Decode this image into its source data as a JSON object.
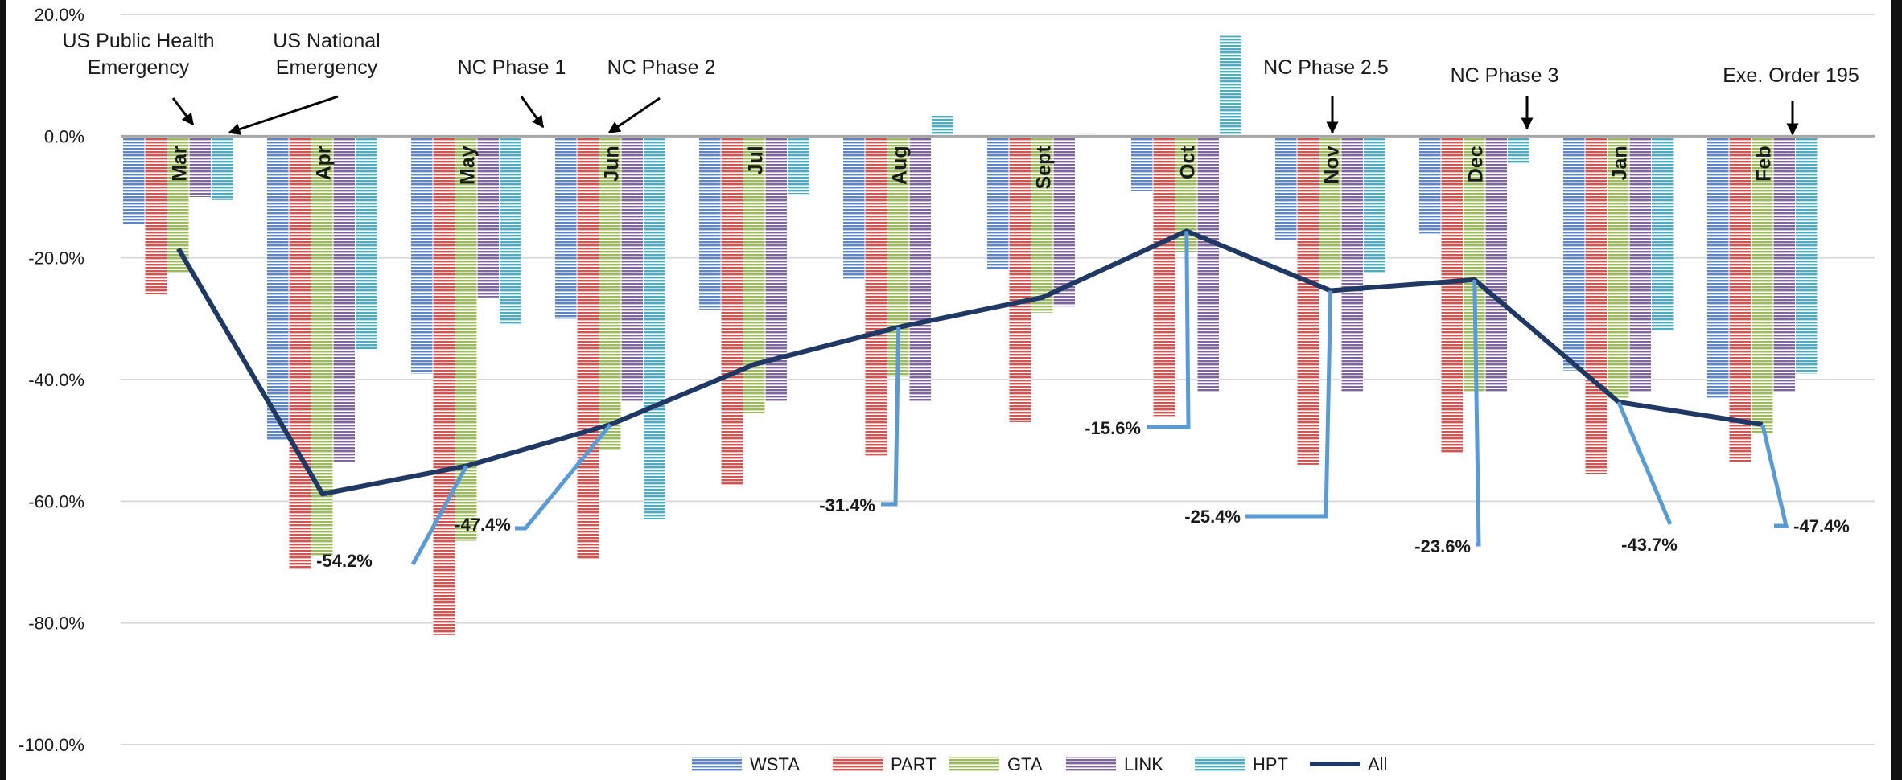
{
  "chart_data": {
    "type": "bar",
    "categories": [
      "Mar",
      "Apr",
      "May",
      "Jun",
      "Jul",
      "Aug",
      "Sept",
      "Oct",
      "Nov",
      "Dec",
      "Jan",
      "Feb"
    ],
    "ylim": [
      -100,
      20
    ],
    "yticks": [
      20,
      0,
      -20,
      -40,
      -60,
      -80,
      -100
    ],
    "ytick_labels": [
      "20.0%",
      "0.0%",
      "-20.0%",
      "-40.0%",
      "-60.0%",
      "-80.0%",
      "-100.0%"
    ],
    "grid": true,
    "legend_position": "bottom",
    "series": [
      {
        "name": "WSTA",
        "color": "#5b86c9",
        "values": [
          -14.5,
          -50,
          -39,
          -30,
          -28.5,
          -23.5,
          -22,
          -9,
          -17,
          -16,
          -38.5,
          -43
        ]
      },
      {
        "name": "PART",
        "color": "#d4524f",
        "values": [
          -26,
          -71,
          -82,
          -69.5,
          -57.5,
          -52.5,
          -47,
          -46,
          -54,
          -52,
          -55.5,
          -53.5
        ]
      },
      {
        "name": "GTA",
        "color": "#9bbb59",
        "values": [
          -22.5,
          -69,
          -66.5,
          -51.5,
          -45.5,
          -39.5,
          -29,
          -19,
          -23.5,
          -42,
          -43,
          -49
        ]
      },
      {
        "name": "LINK",
        "color": "#8064a2",
        "values": [
          -10,
          -53.5,
          -26.5,
          -43.5,
          -43.5,
          -43.5,
          -28,
          -42,
          -42,
          -42,
          -42,
          -42
        ]
      },
      {
        "name": "HPT",
        "color": "#4bacc6",
        "values": [
          -10.5,
          -35,
          -31,
          -63,
          -9.5,
          3.5,
          0.4,
          16.5,
          -22.5,
          -4.5,
          -32,
          -39
        ]
      }
    ],
    "line_series": {
      "name": "All",
      "color": "#1f3864",
      "values": [
        -18.5,
        -58.8,
        -54.2,
        -47.4,
        -37.5,
        -31.4,
        -26.5,
        -15.6,
        -25.4,
        -23.6,
        -43.7,
        -47.4
      ]
    },
    "annotations": [
      {
        "text": "-54.2%",
        "month": "May",
        "value": -54.2
      },
      {
        "text": "-47.4%",
        "month": "Jun",
        "value": -47.4
      },
      {
        "text": "-31.4%",
        "month": "Aug",
        "value": -31.4
      },
      {
        "text": "-15.6%",
        "month": "Oct",
        "value": -15.6
      },
      {
        "text": "-25.4%",
        "month": "Nov",
        "value": -25.4
      },
      {
        "text": "-23.6%",
        "month": "Dec",
        "value": -23.6
      },
      {
        "text": "-43.7%",
        "month": "Jan",
        "value": -43.7
      },
      {
        "text": "-47.4%",
        "month": "Feb",
        "value": -47.4
      }
    ],
    "events": [
      {
        "lines": [
          "US Public Health",
          "Emergency"
        ]
      },
      {
        "lines": [
          "US National",
          "Emergency"
        ]
      },
      {
        "lines": [
          "NC Phase 1"
        ]
      },
      {
        "lines": [
          "NC Phase 2"
        ]
      },
      {
        "lines": [
          "NC Phase 2.5"
        ]
      },
      {
        "lines": [
          "NC Phase 3"
        ]
      },
      {
        "lines": [
          "Exe. Order 195"
        ]
      }
    ]
  }
}
